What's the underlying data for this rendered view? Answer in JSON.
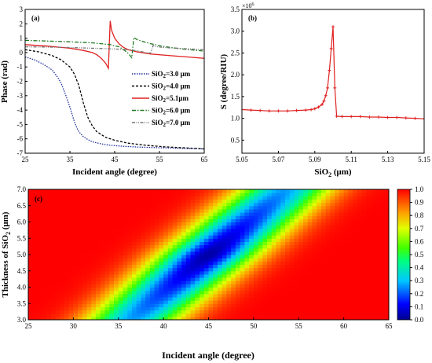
{
  "chart_data": [
    {
      "panel": "(a)",
      "type": "line",
      "xlabel": "Incident angle (degree)",
      "ylabel": "Phase (rad)",
      "xlim": [
        25,
        65
      ],
      "ylim": [
        -7,
        3
      ],
      "xticks": [
        "25",
        "35",
        "45",
        "55",
        "65"
      ],
      "yticks": [
        "-7",
        "-6",
        "-5",
        "-4",
        "-3",
        "-2",
        "-1",
        "0",
        "1",
        "2",
        "3"
      ],
      "legend_position": "right",
      "series": [
        {
          "name": "SiO₂=3.0 μm",
          "label_main": "SiO",
          "label_sub": "2",
          "label_tail": "=3.0 μm",
          "color": "#1f2f9e",
          "dash": "1.5,1.5",
          "x": [
            25,
            27,
            29,
            31,
            32,
            33,
            34,
            35,
            35.5,
            36,
            36.5,
            37,
            38,
            39,
            40,
            42,
            44,
            47,
            50,
            55,
            60,
            65
          ],
          "y": [
            -0.3,
            -0.5,
            -0.8,
            -1.2,
            -1.6,
            -2.1,
            -2.9,
            -3.8,
            -4.3,
            -4.8,
            -5.2,
            -5.5,
            -5.85,
            -6.05,
            -6.2,
            -6.35,
            -6.45,
            -6.52,
            -6.57,
            -6.62,
            -6.66,
            -6.7
          ]
        },
        {
          "name": "SiO₂=4.0 μm",
          "label_main": "SiO",
          "label_sub": "2",
          "label_tail": "=4.0 μm",
          "color": "#000000",
          "dash": "3,2",
          "x": [
            25,
            28,
            31,
            33,
            35,
            36,
            37,
            37.5,
            38,
            38.5,
            39,
            40,
            41,
            43,
            45,
            48,
            52,
            56,
            60,
            65
          ],
          "y": [
            0.2,
            0.05,
            -0.2,
            -0.5,
            -1.0,
            -1.5,
            -2.3,
            -2.9,
            -3.5,
            -4.0,
            -4.5,
            -5.1,
            -5.5,
            -5.9,
            -6.1,
            -6.3,
            -6.45,
            -6.55,
            -6.62,
            -6.7
          ]
        },
        {
          "name": "SiO₂=5.1μm",
          "label_main": "SiO",
          "label_sub": "2",
          "label_tail": "=5.1μm",
          "color": "#e02020",
          "dash": "",
          "x": [
            25,
            30,
            35,
            38,
            40,
            41,
            42,
            43,
            43.6,
            44,
            44.3,
            45,
            46,
            47,
            48,
            50,
            53,
            57,
            61,
            65
          ],
          "y": [
            0.55,
            0.45,
            0.3,
            0.15,
            0.0,
            -0.15,
            -0.4,
            -0.75,
            -1.1,
            2.2,
            1.55,
            1.0,
            0.6,
            0.35,
            0.2,
            0.05,
            -0.1,
            -0.2,
            -0.3,
            -0.4
          ]
        },
        {
          "name": "SiO₂=6.0 μm",
          "label_main": "SiO",
          "label_sub": "2",
          "label_tail": "=6.0 μm",
          "color": "#207a20",
          "dash": "5,2,1.5,2",
          "x": [
            25,
            30,
            35,
            40,
            44,
            46,
            47,
            48,
            48.8,
            49.3,
            50,
            51,
            53,
            56,
            60,
            65
          ],
          "y": [
            0.85,
            0.8,
            0.75,
            0.68,
            0.55,
            0.4,
            0.2,
            -0.05,
            -0.35,
            1.05,
            0.9,
            0.8,
            0.62,
            0.42,
            0.25,
            0.1
          ]
        },
        {
          "name": "SiO₂=7.0 μm",
          "label_main": "SiO",
          "label_sub": "2",
          "label_tail": "=7.0 μm",
          "color": "#777777",
          "dash": "4,1.5,1,1.5,1,1.5",
          "x": [
            25,
            30,
            35,
            40,
            45,
            48,
            50,
            52,
            53,
            53.6,
            54,
            56,
            60,
            65
          ],
          "y": [
            0.4,
            0.38,
            0.35,
            0.3,
            0.25,
            0.2,
            0.12,
            0.0,
            -0.05,
            0.5,
            0.42,
            0.35,
            0.28,
            0.2
          ]
        }
      ]
    },
    {
      "panel": "(b)",
      "type": "line",
      "xlabel_main": "SiO",
      "xlabel_sub": "2",
      "xlabel_tail": " (μm)",
      "ylabel": "S (degree/RIU)",
      "multiplier_main": "×10",
      "multiplier_sup": "6",
      "xlim": [
        5.05,
        5.15
      ],
      "ylim": [
        0.2,
        3.5
      ],
      "xticks": [
        "5.05",
        "5.07",
        "5.09",
        "5.11",
        "5.13",
        "5.15"
      ],
      "yticks": [
        "0.5",
        "1.0",
        "1.5",
        "2.0",
        "2.5",
        "3.0",
        "3.5"
      ],
      "series": [
        {
          "color": "#e02020",
          "x": [
            5.05,
            5.055,
            5.06,
            5.065,
            5.07,
            5.075,
            5.08,
            5.085,
            5.088,
            5.09,
            5.092,
            5.094,
            5.095,
            5.096,
            5.097,
            5.098,
            5.099,
            5.1,
            5.101,
            5.102,
            5.105,
            5.11,
            5.115,
            5.12,
            5.125,
            5.13,
            5.135,
            5.14,
            5.145,
            5.15
          ],
          "y": [
            1.2,
            1.19,
            1.18,
            1.17,
            1.17,
            1.17,
            1.18,
            1.19,
            1.2,
            1.22,
            1.26,
            1.32,
            1.4,
            1.52,
            1.7,
            2.1,
            2.6,
            3.1,
            1.7,
            1.05,
            1.04,
            1.04,
            1.04,
            1.03,
            1.03,
            1.02,
            1.02,
            1.01,
            1.0,
            0.99
          ]
        }
      ]
    },
    {
      "panel": "(c)",
      "type": "heatmap",
      "xlabel": "Incident angle (degree)",
      "ylabel_main": "Thickness of SiO",
      "ylabel_sub": "2",
      "ylabel_tail": " (μm)",
      "xlim": [
        25,
        65
      ],
      "ylim": [
        3.0,
        7.0
      ],
      "xticks": [
        "25",
        "30",
        "35",
        "40",
        "45",
        "50",
        "55",
        "60",
        "65"
      ],
      "yticks": [
        "3.0",
        "3.5",
        "4.0",
        "4.5",
        "5.0",
        "5.5",
        "6.0",
        "6.5",
        "7.0"
      ],
      "colorbar_ticks": [
        "0.0",
        "0.1",
        "0.2",
        "0.3",
        "0.4",
        "0.5",
        "0.6",
        "0.7",
        "0.8",
        "0.9",
        "1.0"
      ],
      "colorbar_range": [
        0.0,
        1.0
      ],
      "valley": {
        "thickness": [
          3.0,
          7.0
        ],
        "angle_at_thickness": [
          36.5,
          53.5
        ],
        "width_deg": 5.2,
        "min_value": 0.02
      }
    }
  ]
}
